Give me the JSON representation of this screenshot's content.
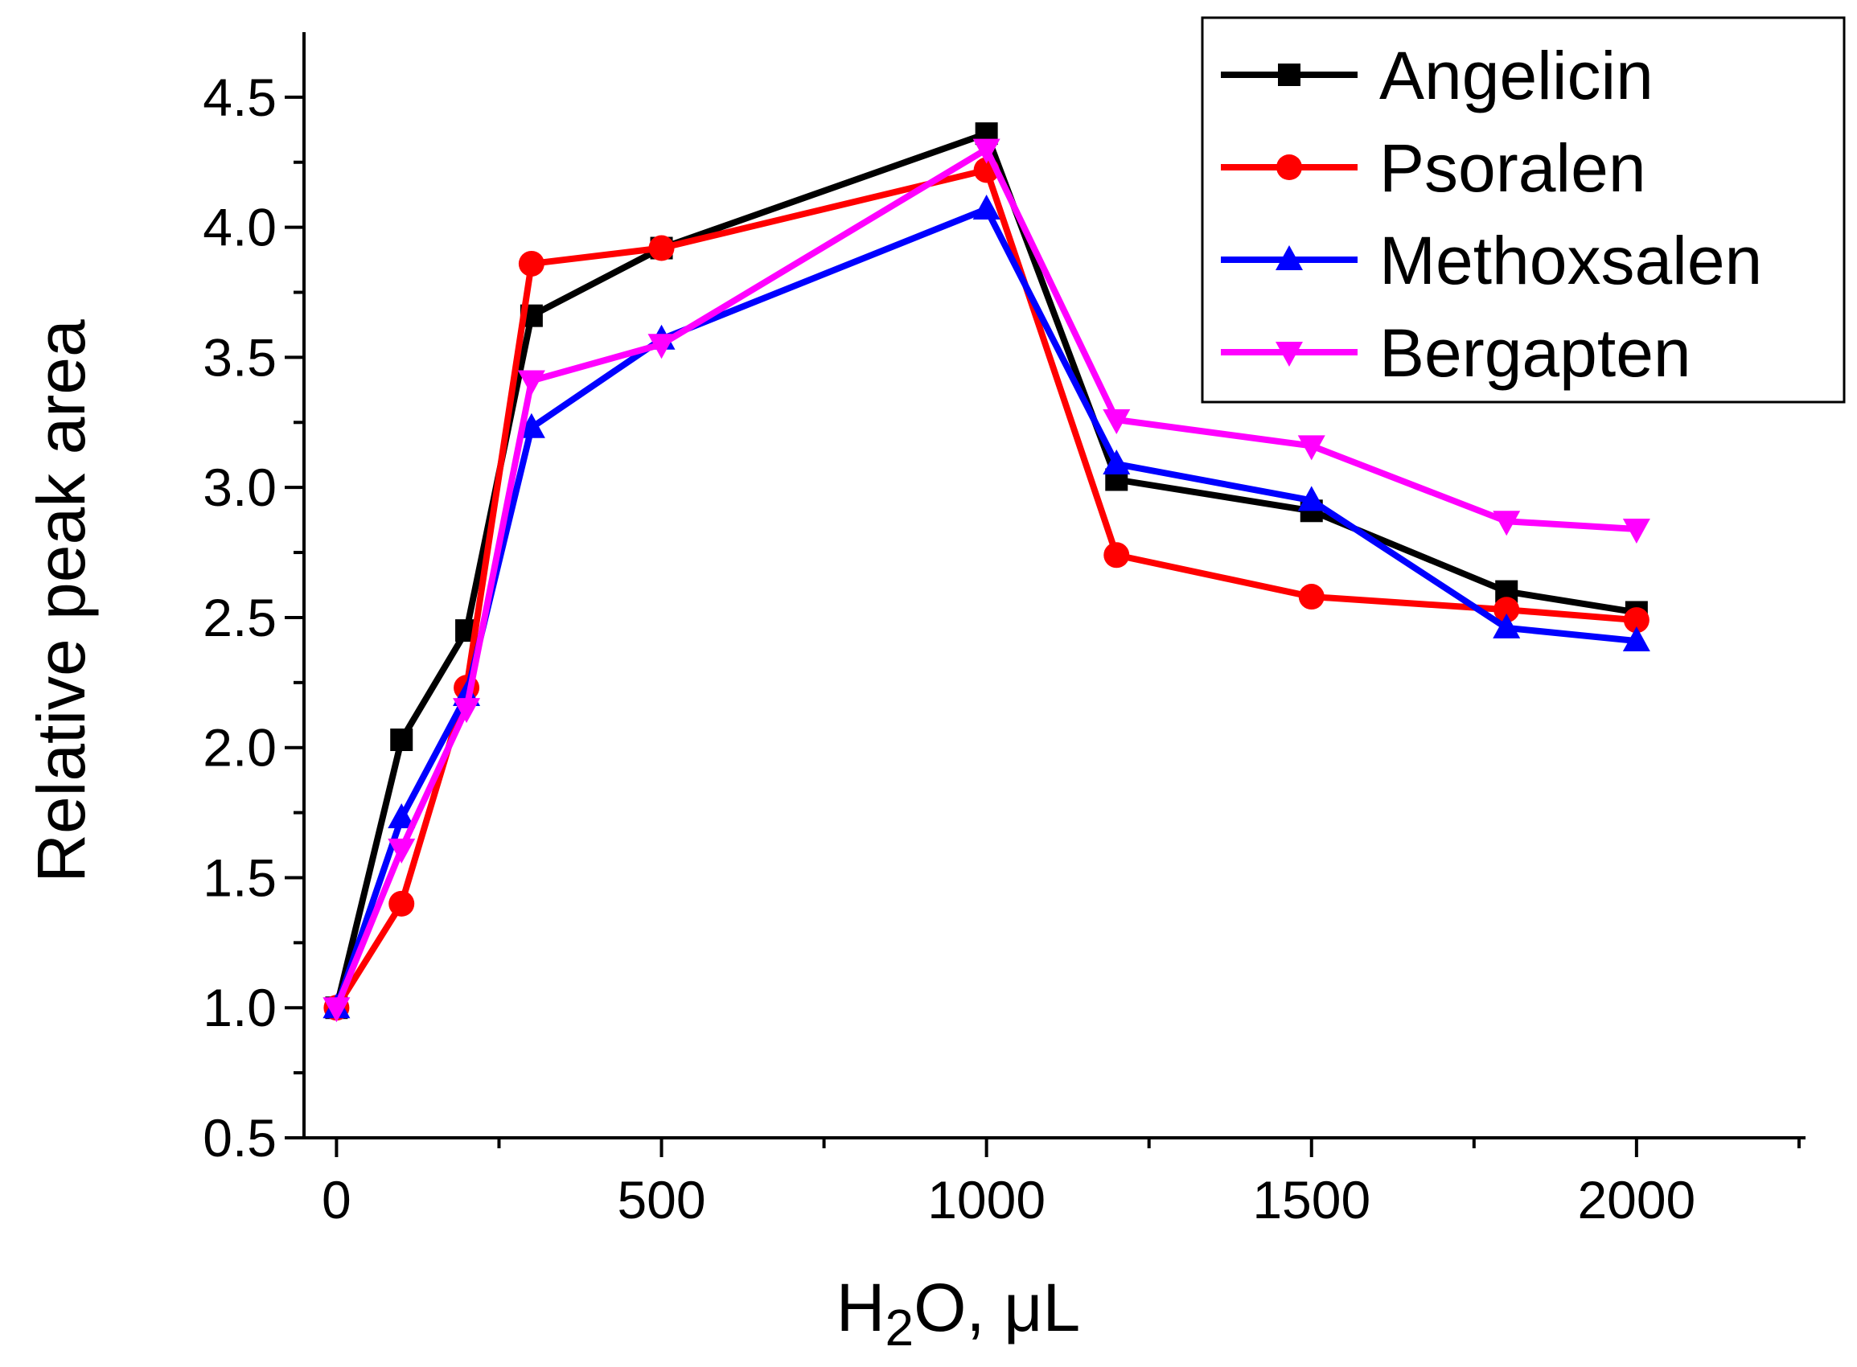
{
  "chart_data": {
    "type": "line",
    "title": "",
    "xlabel": "H2O, μL",
    "xlabel_parts": {
      "base": "H",
      "subscript": "2",
      "rest": "O, μL"
    },
    "ylabel": "Relative peak area",
    "xlim": [
      -50,
      2260
    ],
    "ylim": [
      0.5,
      4.75
    ],
    "x_ticks": [
      0,
      500,
      1000,
      1500,
      2000
    ],
    "x_tick_labels": [
      "0",
      "500",
      "1000",
      "1500",
      "2000"
    ],
    "y_ticks": [
      0.5,
      1.0,
      1.5,
      2.0,
      2.5,
      3.0,
      3.5,
      4.0,
      4.5
    ],
    "y_tick_labels": [
      "0.5",
      "1.0",
      "1.5",
      "2.0",
      "2.5",
      "3.0",
      "3.5",
      "4.0",
      "4.5"
    ],
    "grid": false,
    "legend_position": "top-right",
    "x": [
      0,
      100,
      200,
      300,
      500,
      1000,
      1200,
      1500,
      1800,
      2000
    ],
    "series": [
      {
        "name": "Angelicin",
        "color": "#000000",
        "marker": "square",
        "values": [
          1.0,
          2.03,
          2.45,
          3.66,
          3.92,
          4.36,
          3.03,
          2.91,
          2.6,
          2.52
        ]
      },
      {
        "name": "Psoralen",
        "color": "#ff0000",
        "marker": "circle",
        "values": [
          1.0,
          1.4,
          2.23,
          3.86,
          3.92,
          4.22,
          2.74,
          2.58,
          2.53,
          2.49
        ]
      },
      {
        "name": "Methoxsalen",
        "color": "#0000ff",
        "marker": "triangle-up",
        "values": [
          1.0,
          1.73,
          2.2,
          3.23,
          3.57,
          4.07,
          3.09,
          2.95,
          2.46,
          2.41
        ]
      },
      {
        "name": "Bergapten",
        "color": "#ff00ff",
        "marker": "triangle-down",
        "values": [
          1.0,
          1.61,
          2.15,
          3.41,
          3.55,
          4.3,
          3.26,
          3.16,
          2.87,
          2.84
        ]
      }
    ]
  }
}
